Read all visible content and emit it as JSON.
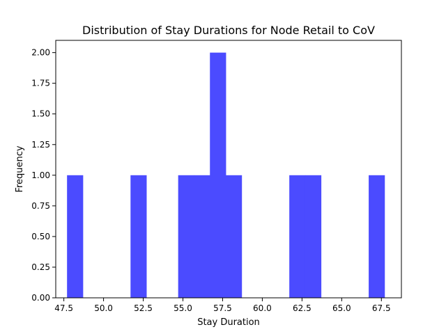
{
  "chart_data": {
    "type": "bar",
    "title": "Distribution of Stay Durations for Node Retail to CoV",
    "xlabel": "Stay Duration",
    "ylabel": "Frequency",
    "xlim": [
      46.99,
      68.76
    ],
    "ylim": [
      0,
      2.1
    ],
    "x_ticks": [
      47.5,
      50.0,
      52.5,
      55.0,
      57.5,
      60.0,
      62.5,
      65.0,
      67.5
    ],
    "x_tick_labels": [
      "47.5",
      "50.0",
      "52.5",
      "55.0",
      "57.5",
      "60.0",
      "62.5",
      "65.0",
      "67.5"
    ],
    "y_ticks": [
      0,
      0.25,
      0.5,
      0.75,
      1.0,
      1.25,
      1.5,
      1.75,
      2.0
    ],
    "y_tick_labels": [
      "0.00",
      "0.25",
      "0.50",
      "0.75",
      "1.00",
      "1.25",
      "1.50",
      "1.75",
      "2.00"
    ],
    "bin_width": 1.0,
    "bins": [
      {
        "start": 47.7,
        "end": 48.7,
        "count": 1
      },
      {
        "start": 51.7,
        "end": 52.7,
        "count": 1
      },
      {
        "start": 54.7,
        "end": 55.7,
        "count": 1
      },
      {
        "start": 55.7,
        "end": 56.7,
        "count": 1
      },
      {
        "start": 56.7,
        "end": 57.7,
        "count": 2
      },
      {
        "start": 57.7,
        "end": 58.7,
        "count": 1
      },
      {
        "start": 61.7,
        "end": 62.7,
        "count": 1
      },
      {
        "start": 62.7,
        "end": 63.7,
        "count": 1
      },
      {
        "start": 66.7,
        "end": 67.7,
        "count": 1
      }
    ],
    "bar_color": "#4b4bff",
    "grid": false,
    "legend": "none"
  }
}
